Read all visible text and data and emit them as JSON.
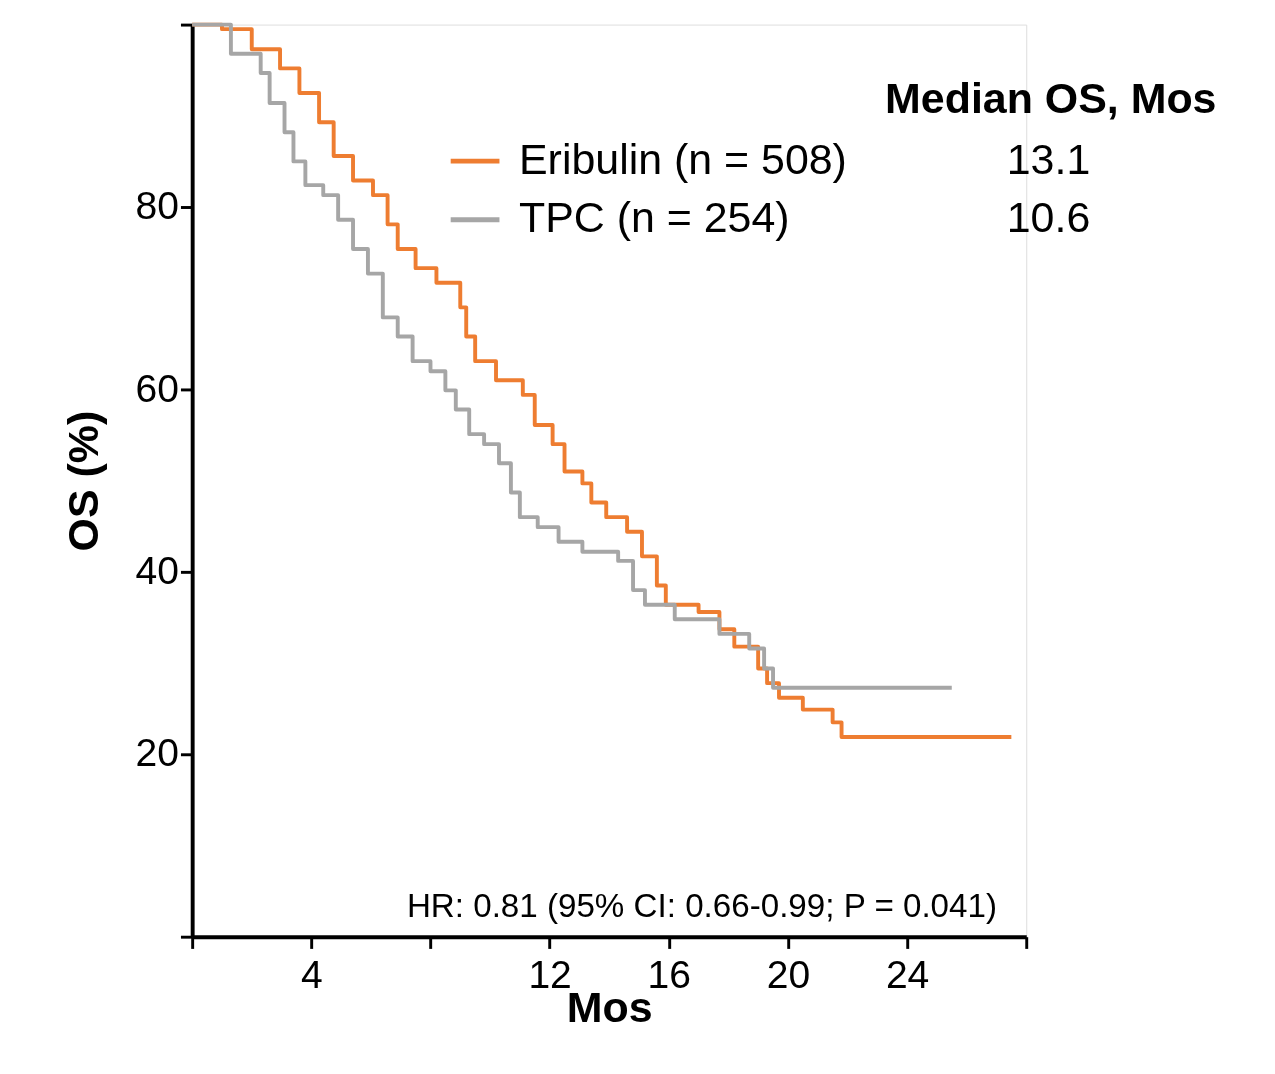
{
  "chart_data": {
    "type": "step",
    "xlabel": "Mos",
    "ylabel": "OS (%)",
    "legend_title": "Median OS, Mos",
    "legend": "top right",
    "grid": false,
    "marker": "none",
    "line_style": "solid",
    "xlim": [
      0,
      28
    ],
    "ylim": [
      0,
      100
    ],
    "xticks": [
      {
        "value": 0,
        "label": null
      },
      4,
      {
        "value": 8,
        "label": null
      },
      12,
      16,
      20,
      24,
      {
        "value": 28,
        "label": null
      }
    ],
    "yticks": [
      {
        "value": 0,
        "label": null
      },
      20,
      40,
      60,
      80,
      {
        "value": 100,
        "label": null
      }
    ],
    "series": [
      {
        "name": "Eribulin (n = 508)",
        "color": "#ee7d31",
        "x": [
          0,
          1.0,
          2.0,
          2.95,
          3.6,
          4.26,
          4.75,
          5.4,
          6.07,
          6.56,
          6.9,
          7.5,
          8.2,
          9.0,
          9.2,
          9.5,
          10.2,
          11.1,
          11.5,
          12.1,
          12.5,
          13.1,
          13.4,
          13.9,
          14.6,
          15.1,
          15.6,
          15.9,
          17.0,
          17.7,
          18.2,
          19.0,
          19.3,
          19.7,
          20.5,
          21.5,
          21.8,
          27.5
        ],
        "values": [
          100,
          99.5,
          97.3,
          95.2,
          92.5,
          89.3,
          85.6,
          82.9,
          81.3,
          78.1,
          75.4,
          73.3,
          71.7,
          69.0,
          65.8,
          63.1,
          61.0,
          59.4,
          56.1,
          54.0,
          51.0,
          49.7,
          47.6,
          46.0,
          44.4,
          41.7,
          38.5,
          36.4,
          35.6,
          33.7,
          31.8,
          29.4,
          27.8,
          26.2,
          24.9,
          23.5,
          21.9,
          21.9
        ]
      },
      {
        "name": "TPC (n = 254)",
        "color": "#a6a6a6",
        "x": [
          0,
          1.3,
          2.3,
          2.6,
          3.1,
          3.4,
          3.8,
          4.4,
          4.9,
          5.4,
          5.9,
          6.4,
          6.9,
          7.4,
          8.0,
          8.5,
          8.85,
          9.3,
          9.8,
          10.3,
          10.7,
          11.0,
          11.6,
          12.3,
          13.1,
          14.3,
          14.8,
          15.2,
          16.2,
          17.7,
          18.7,
          19.2,
          19.5,
          25.5
        ],
        "values": [
          100,
          96.8,
          94.7,
          91.4,
          88.2,
          85.0,
          82.4,
          81.3,
          78.6,
          75.4,
          72.7,
          67.9,
          65.8,
          63.1,
          62.0,
          59.9,
          57.8,
          55.1,
          54.0,
          51.9,
          48.7,
          46.0,
          44.9,
          43.3,
          42.2,
          41.2,
          38.0,
          36.4,
          34.8,
          33.2,
          31.6,
          29.4,
          27.3,
          27.3
        ]
      }
    ],
    "annotations": [
      "13.1",
      "10.6",
      "HR: 0.81 (95% CI: 0.66-0.99; P = 0.041)"
    ]
  }
}
